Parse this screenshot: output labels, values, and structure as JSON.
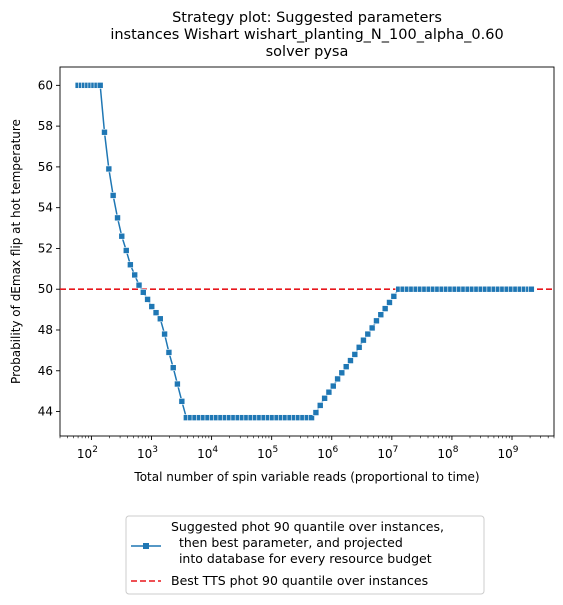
{
  "title": [
    "Strategy plot: Suggested parameters",
    "instances Wishart wishart_planting_N_100_alpha_0.60",
    "solver pysa"
  ],
  "colors": {
    "series": "#1f77b4",
    "hline": "#e8161c"
  },
  "chart_data": {
    "type": "line",
    "xlabel": "Total number of spin variable reads (proportional to time)",
    "ylabel": "Probability of dEmax flip at hot temperature",
    "xscale": "log",
    "xlim": [
      30,
      5000000000
    ],
    "ylim": [
      42.8,
      60.9
    ],
    "xticks": [
      {
        "base": "10",
        "exp": "2",
        "value": 100
      },
      {
        "base": "10",
        "exp": "3",
        "value": 1000
      },
      {
        "base": "10",
        "exp": "4",
        "value": 10000
      },
      {
        "base": "10",
        "exp": "5",
        "value": 100000
      },
      {
        "base": "10",
        "exp": "6",
        "value": 1000000
      },
      {
        "base": "10",
        "exp": "7",
        "value": 10000000
      },
      {
        "base": "10",
        "exp": "8",
        "value": 100000000
      },
      {
        "base": "10",
        "exp": "9",
        "value": 1000000000
      }
    ],
    "yticks": [
      "44",
      "46",
      "48",
      "50",
      "52",
      "54",
      "56",
      "58",
      "60"
    ],
    "grid": false,
    "legend_position": "below",
    "series": [
      {
        "name": "Suggested phot 90 quantile over instances,\n  then best parameter, and projected\n  into database for every resource budget",
        "marker": "square",
        "points": [
          [
            60,
            60.0
          ],
          [
            68,
            60.0
          ],
          [
            77,
            60.0
          ],
          [
            87,
            60.0
          ],
          [
            98,
            60.0
          ],
          [
            110,
            60.0
          ],
          [
            124,
            60.0
          ],
          [
            140,
            60.0
          ],
          [
            165,
            57.7
          ],
          [
            195,
            55.9
          ],
          [
            230,
            54.6
          ],
          [
            272,
            53.5
          ],
          [
            320,
            52.6
          ],
          [
            380,
            51.9
          ],
          [
            445,
            51.2
          ],
          [
            525,
            50.7
          ],
          [
            620,
            50.2
          ],
          [
            730,
            49.85
          ],
          [
            860,
            49.5
          ],
          [
            1010,
            49.15
          ],
          [
            1190,
            48.85
          ],
          [
            1400,
            48.55
          ],
          [
            1650,
            47.8
          ],
          [
            1950,
            46.9
          ],
          [
            2300,
            46.15
          ],
          [
            2700,
            45.35
          ],
          [
            3200,
            44.5
          ],
          [
            3800,
            43.7
          ],
          [
            4500,
            43.7
          ],
          [
            5300,
            43.7
          ],
          [
            6300,
            43.7
          ],
          [
            7400,
            43.7
          ],
          [
            8700,
            43.7
          ],
          [
            10300,
            43.7
          ],
          [
            12100,
            43.7
          ],
          [
            14300,
            43.7
          ],
          [
            16900,
            43.7
          ],
          [
            19900,
            43.7
          ],
          [
            23500,
            43.7
          ],
          [
            27700,
            43.7
          ],
          [
            32700,
            43.7
          ],
          [
            38600,
            43.7
          ],
          [
            45500,
            43.7
          ],
          [
            53700,
            43.7
          ],
          [
            63400,
            43.7
          ],
          [
            74800,
            43.7
          ],
          [
            88300,
            43.7
          ],
          [
            104000,
            43.7
          ],
          [
            123000,
            43.7
          ],
          [
            145000,
            43.7
          ],
          [
            171000,
            43.7
          ],
          [
            202000,
            43.7
          ],
          [
            238000,
            43.7
          ],
          [
            281000,
            43.7
          ],
          [
            331000,
            43.7
          ],
          [
            391000,
            43.7
          ],
          [
            461000,
            43.7
          ],
          [
            545000,
            43.95
          ],
          [
            643000,
            44.3
          ],
          [
            760000,
            44.65
          ],
          [
            897000,
            44.95
          ],
          [
            1060000,
            45.25
          ],
          [
            1250000,
            45.6
          ],
          [
            1470000,
            45.9
          ],
          [
            1740000,
            46.2
          ],
          [
            2050000,
            46.5
          ],
          [
            2420000,
            46.8
          ],
          [
            2860000,
            47.15
          ],
          [
            3370000,
            47.5
          ],
          [
            3980000,
            47.8
          ],
          [
            4700000,
            48.1
          ],
          [
            5550000,
            48.45
          ],
          [
            6550000,
            48.75
          ],
          [
            7740000,
            49.05
          ],
          [
            9140000,
            49.35
          ],
          [
            10800000,
            49.65
          ],
          [
            13000000,
            50.0
          ],
          [
            15400000,
            50.0
          ],
          [
            18200000,
            50.0
          ],
          [
            21500000,
            50.0
          ],
          [
            25400000,
            50.0
          ],
          [
            30000000,
            50.0
          ],
          [
            35400000,
            50.0
          ],
          [
            41800000,
            50.0
          ],
          [
            49300000,
            50.0
          ],
          [
            58200000,
            50.0
          ],
          [
            68700000,
            50.0
          ],
          [
            81100000,
            50.0
          ],
          [
            95800000,
            50.0
          ],
          [
            113000000,
            50.0
          ],
          [
            134000000,
            50.0
          ],
          [
            158000000,
            50.0
          ],
          [
            186000000,
            50.0
          ],
          [
            220000000,
            50.0
          ],
          [
            260000000,
            50.0
          ],
          [
            307000000,
            50.0
          ],
          [
            362000000,
            50.0
          ],
          [
            428000000,
            50.0
          ],
          [
            505000000,
            50.0
          ],
          [
            596000000,
            50.0
          ],
          [
            703000000,
            50.0
          ],
          [
            830000000,
            50.0
          ],
          [
            980000000,
            50.0
          ],
          [
            1160000000,
            50.0
          ],
          [
            1370000000,
            50.0
          ],
          [
            1610000000,
            50.0
          ],
          [
            1900000000,
            50.0
          ],
          [
            2100000000,
            50.0
          ]
        ]
      }
    ],
    "hlines": [
      {
        "name": "Best TTS phot 90 quantile over instances",
        "y": 50.0,
        "style": "dashed"
      }
    ]
  }
}
